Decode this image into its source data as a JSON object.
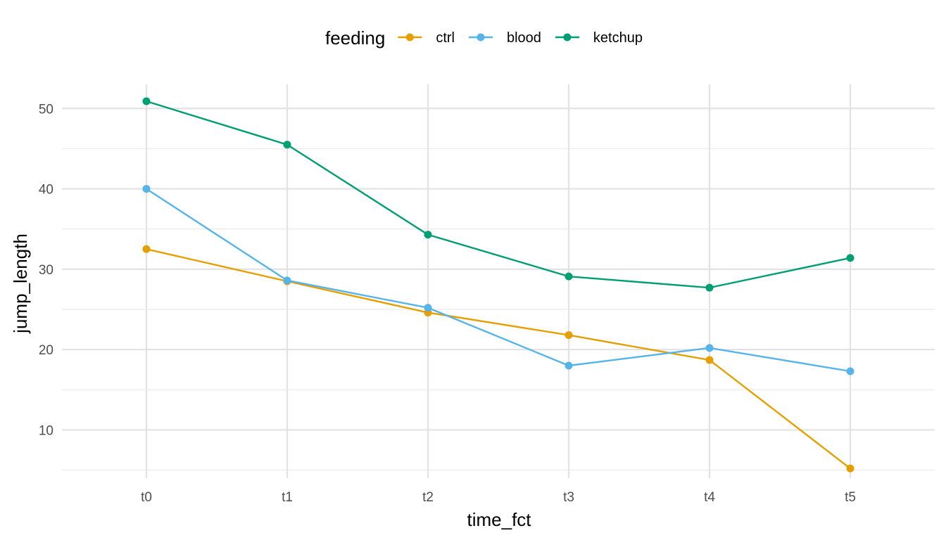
{
  "chart_data": {
    "type": "line",
    "xlabel": "time_fct",
    "ylabel": "jump_length",
    "categories": [
      "t0",
      "t1",
      "t2",
      "t3",
      "t4",
      "t5"
    ],
    "ylim": [
      4,
      53
    ],
    "yticks": [
      10,
      20,
      30,
      40,
      50
    ],
    "grid": true,
    "legend": {
      "title": "feeding",
      "position": "top"
    },
    "series": [
      {
        "name": "ctrl",
        "color": "#E69F00",
        "values": [
          32.5,
          28.5,
          24.6,
          21.8,
          18.7,
          5.2
        ]
      },
      {
        "name": "blood",
        "color": "#56B4E9",
        "values": [
          40.0,
          28.6,
          25.2,
          18.0,
          20.2,
          17.3
        ]
      },
      {
        "name": "ketchup",
        "color": "#009E73",
        "values": [
          50.9,
          45.5,
          34.3,
          29.1,
          27.7,
          31.4
        ]
      }
    ]
  }
}
